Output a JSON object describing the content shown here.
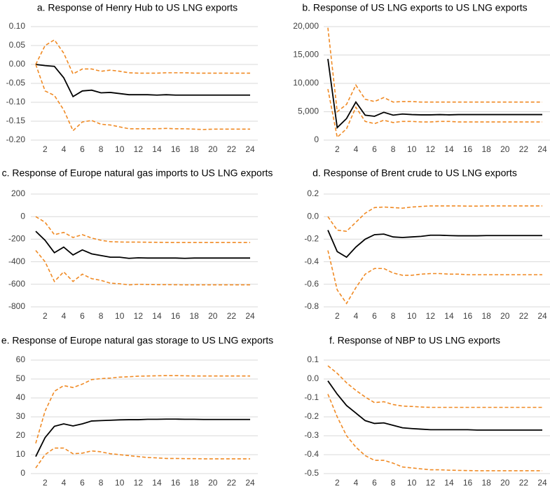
{
  "chart_data": [
    {
      "type": "line",
      "title": "a. Response of Henry Hub to US LNG exports",
      "x": [
        1,
        2,
        3,
        4,
        5,
        6,
        7,
        8,
        9,
        10,
        11,
        12,
        13,
        14,
        15,
        16,
        17,
        18,
        19,
        20,
        21,
        22,
        23,
        24
      ],
      "xlim": [
        1,
        24
      ],
      "xticks": [
        2,
        4,
        6,
        8,
        10,
        12,
        14,
        16,
        18,
        20,
        22,
        24
      ],
      "ylim": [
        -0.2,
        0.1
      ],
      "yticks": [
        {
          "value": 0.1,
          "label": "0.10"
        },
        0.05,
        {
          "value": 0,
          "label": "0.00"
        },
        -0.05,
        {
          "value": -0.1,
          "label": "-0.10"
        },
        -0.15,
        {
          "value": -0.2,
          "label": "-0.20"
        }
      ],
      "grid": true,
      "series": [
        {
          "color": "#f08a24",
          "style": "dashed",
          "values": [
            0,
            0.05,
            0.065,
            0.03,
            -0.025,
            -0.012,
            -0.012,
            -0.018,
            -0.015,
            -0.018,
            -0.022,
            -0.023,
            -0.023,
            -0.023,
            -0.022,
            -0.022,
            -0.022,
            -0.023,
            -0.023,
            -0.023,
            -0.023,
            -0.023,
            -0.023,
            -0.023
          ]
        },
        {
          "color": "#000000",
          "style": "solid",
          "values": [
            0,
            -0.003,
            -0.005,
            -0.035,
            -0.085,
            -0.07,
            -0.068,
            -0.075,
            -0.074,
            -0.077,
            -0.08,
            -0.08,
            -0.08,
            -0.081,
            -0.08,
            -0.081,
            -0.081,
            -0.081,
            -0.081,
            -0.081,
            -0.081,
            -0.081,
            -0.081,
            -0.081
          ]
        },
        {
          "color": "#f08a24",
          "style": "dashed",
          "values": [
            0,
            -0.07,
            -0.082,
            -0.12,
            -0.175,
            -0.152,
            -0.148,
            -0.158,
            -0.16,
            -0.165,
            -0.17,
            -0.17,
            -0.17,
            -0.17,
            -0.169,
            -0.17,
            -0.17,
            -0.171,
            -0.172,
            -0.171,
            -0.171,
            -0.171,
            -0.171,
            -0.171
          ]
        }
      ]
    },
    {
      "type": "line",
      "title": "b. Response of US LNG exports to US LNG exports",
      "x": [
        1,
        2,
        3,
        4,
        5,
        6,
        7,
        8,
        9,
        10,
        11,
        12,
        13,
        14,
        15,
        16,
        17,
        18,
        19,
        20,
        21,
        22,
        23,
        24
      ],
      "xlim": [
        1,
        24
      ],
      "xticks": [
        2,
        4,
        6,
        8,
        10,
        12,
        14,
        16,
        18,
        20,
        22,
        24
      ],
      "ylim": [
        0,
        20000
      ],
      "yticks": [
        {
          "value": 20000,
          "label": "20,000"
        },
        {
          "value": 15000,
          "label": "15,000"
        },
        {
          "value": 10000,
          "label": "10,000"
        },
        {
          "value": 5000,
          "label": "5,000"
        },
        0
      ],
      "grid": true,
      "series": [
        {
          "color": "#f08a24",
          "style": "dashed",
          "values": [
            19800,
            5000,
            6300,
            9700,
            7200,
            6800,
            7500,
            6700,
            6800,
            6800,
            6700,
            6700,
            6700,
            6700,
            6700,
            6700,
            6700,
            6700,
            6700,
            6700,
            6700,
            6700,
            6700,
            6700
          ]
        },
        {
          "color": "#000000",
          "style": "solid",
          "values": [
            14300,
            2200,
            3800,
            6700,
            4400,
            4200,
            4900,
            4400,
            4600,
            4500,
            4450,
            4450,
            4500,
            4450,
            4500,
            4500,
            4500,
            4500,
            4500,
            4500,
            4500,
            4500,
            4500,
            4500
          ]
        },
        {
          "color": "#f08a24",
          "style": "dashed",
          "values": [
            9000,
            500,
            2000,
            5800,
            3300,
            2900,
            3500,
            3100,
            3300,
            3300,
            3200,
            3200,
            3300,
            3300,
            3200,
            3200,
            3200,
            3200,
            3200,
            3200,
            3200,
            3200,
            3200,
            3200
          ]
        }
      ]
    },
    {
      "type": "line",
      "title": "c. Response of Europe natural gas imports to US LNG exports",
      "x": [
        1,
        2,
        3,
        4,
        5,
        6,
        7,
        8,
        9,
        10,
        11,
        12,
        13,
        14,
        15,
        16,
        17,
        18,
        19,
        20,
        21,
        22,
        23,
        24
      ],
      "xlim": [
        1,
        24
      ],
      "xticks": [
        2,
        4,
        6,
        8,
        10,
        12,
        14,
        16,
        18,
        20,
        22,
        24
      ],
      "ylim": [
        -800,
        200
      ],
      "yticks": [
        200,
        0,
        -200,
        -400,
        -600,
        -800
      ],
      "grid": true,
      "series": [
        {
          "color": "#f08a24",
          "style": "dashed",
          "values": [
            0,
            -50,
            -160,
            -140,
            -185,
            -160,
            -190,
            -210,
            -222,
            -225,
            -226,
            -226,
            -227,
            -228,
            -229,
            -230,
            -230,
            -230,
            -230,
            -230,
            -230,
            -230,
            -230,
            -230
          ]
        },
        {
          "color": "#000000",
          "style": "solid",
          "values": [
            -130,
            -210,
            -320,
            -270,
            -340,
            -295,
            -330,
            -345,
            -360,
            -360,
            -370,
            -365,
            -367,
            -367,
            -367,
            -367,
            -370,
            -367,
            -367,
            -367,
            -367,
            -367,
            -367,
            -367
          ]
        },
        {
          "color": "#f08a24",
          "style": "dashed",
          "values": [
            -300,
            -400,
            -575,
            -490,
            -575,
            -510,
            -550,
            -565,
            -590,
            -595,
            -605,
            -600,
            -602,
            -603,
            -603,
            -604,
            -605,
            -605,
            -605,
            -605,
            -605,
            -605,
            -605,
            -605
          ]
        }
      ]
    },
    {
      "type": "line",
      "title": "d. Response of Brent crude to US LNG exports",
      "x": [
        1,
        2,
        3,
        4,
        5,
        6,
        7,
        8,
        9,
        10,
        11,
        12,
        13,
        14,
        15,
        16,
        17,
        18,
        19,
        20,
        21,
        22,
        23,
        24
      ],
      "xlim": [
        1,
        24
      ],
      "xticks": [
        2,
        4,
        6,
        8,
        10,
        12,
        14,
        16,
        18,
        20,
        22,
        24
      ],
      "ylim": [
        -0.8,
        0.2
      ],
      "yticks": [
        0.2,
        {
          "value": 0,
          "label": "0.0"
        },
        -0.2,
        -0.4,
        -0.6,
        -0.8
      ],
      "grid": true,
      "series": [
        {
          "color": "#f08a24",
          "style": "dashed",
          "values": [
            0,
            -0.12,
            -0.13,
            -0.05,
            0.03,
            0.08,
            0.085,
            0.08,
            0.075,
            0.085,
            0.09,
            0.095,
            0.095,
            0.095,
            0.095,
            0.093,
            0.093,
            0.095,
            0.095,
            0.095,
            0.095,
            0.095,
            0.095,
            0.095
          ]
        },
        {
          "color": "#000000",
          "style": "solid",
          "values": [
            -0.12,
            -0.31,
            -0.36,
            -0.27,
            -0.2,
            -0.16,
            -0.155,
            -0.18,
            -0.185,
            -0.18,
            -0.175,
            -0.165,
            -0.165,
            -0.168,
            -0.17,
            -0.17,
            -0.17,
            -0.168,
            -0.168,
            -0.168,
            -0.168,
            -0.168,
            -0.168,
            -0.168
          ]
        },
        {
          "color": "#f08a24",
          "style": "dashed",
          "values": [
            -0.3,
            -0.65,
            -0.77,
            -0.63,
            -0.51,
            -0.46,
            -0.46,
            -0.5,
            -0.52,
            -0.52,
            -0.51,
            -0.505,
            -0.505,
            -0.51,
            -0.51,
            -0.515,
            -0.515,
            -0.515,
            -0.515,
            -0.515,
            -0.515,
            -0.515,
            -0.515,
            -0.515
          ]
        }
      ]
    },
    {
      "type": "line",
      "title": "e. Response of Europe natural gas storage to US LNG exports",
      "x": [
        1,
        2,
        3,
        4,
        5,
        6,
        7,
        8,
        9,
        10,
        11,
        12,
        13,
        14,
        15,
        16,
        17,
        18,
        19,
        20,
        21,
        22,
        23,
        24
      ],
      "xlim": [
        1,
        24
      ],
      "xticks": [
        2,
        4,
        6,
        8,
        10,
        12,
        14,
        16,
        18,
        20,
        22,
        24
      ],
      "ylim": [
        0,
        60
      ],
      "yticks": [
        60,
        50,
        40,
        30,
        20,
        10,
        0
      ],
      "grid": true,
      "series": [
        {
          "color": "#f08a24",
          "style": "dashed",
          "values": [
            16,
            33,
            43.5,
            46.5,
            45.5,
            47.3,
            49.7,
            50.2,
            50.5,
            51,
            51.2,
            51.5,
            51.6,
            51.7,
            51.8,
            51.8,
            51.7,
            51.6,
            51.6,
            51.6,
            51.6,
            51.6,
            51.6,
            51.6
          ]
        },
        {
          "color": "#000000",
          "style": "solid",
          "values": [
            9,
            19,
            25,
            26.3,
            25.2,
            26.3,
            27.8,
            28,
            28.2,
            28.4,
            28.5,
            28.5,
            28.7,
            28.7,
            28.8,
            28.8,
            28.7,
            28.7,
            28.6,
            28.6,
            28.6,
            28.6,
            28.6,
            28.6
          ]
        },
        {
          "color": "#f08a24",
          "style": "dashed",
          "values": [
            3,
            10,
            13.5,
            13.5,
            10.5,
            10.8,
            12,
            11.5,
            10.5,
            10,
            9.5,
            9,
            8.5,
            8.3,
            8,
            8,
            7.9,
            7.9,
            7.8,
            7.8,
            7.8,
            7.8,
            7.8,
            7.8
          ]
        }
      ]
    },
    {
      "type": "line",
      "title": "f. Response of NBP to US LNG exports",
      "x": [
        1,
        2,
        3,
        4,
        5,
        6,
        7,
        8,
        9,
        10,
        11,
        12,
        13,
        14,
        15,
        16,
        17,
        18,
        19,
        20,
        21,
        22,
        23,
        24
      ],
      "xlim": [
        1,
        24
      ],
      "xticks": [
        2,
        4,
        6,
        8,
        10,
        12,
        14,
        16,
        18,
        20,
        22,
        24
      ],
      "ylim": [
        -0.5,
        0.1
      ],
      "yticks": [
        0.1,
        {
          "value": 0,
          "label": "0.0"
        },
        -0.1,
        -0.2,
        -0.3,
        -0.4,
        -0.5
      ],
      "grid": true,
      "series": [
        {
          "color": "#f08a24",
          "style": "dashed",
          "values": [
            0.07,
            0.03,
            -0.02,
            -0.06,
            -0.095,
            -0.125,
            -0.12,
            -0.135,
            -0.143,
            -0.145,
            -0.148,
            -0.15,
            -0.15,
            -0.15,
            -0.15,
            -0.15,
            -0.15,
            -0.15,
            -0.15,
            -0.15,
            -0.15,
            -0.15,
            -0.15,
            -0.15
          ]
        },
        {
          "color": "#000000",
          "style": "solid",
          "values": [
            -0.01,
            -0.08,
            -0.14,
            -0.18,
            -0.22,
            -0.235,
            -0.232,
            -0.245,
            -0.258,
            -0.262,
            -0.265,
            -0.268,
            -0.268,
            -0.268,
            -0.268,
            -0.268,
            -0.27,
            -0.27,
            -0.27,
            -0.27,
            -0.27,
            -0.27,
            -0.27,
            -0.27
          ]
        },
        {
          "color": "#f08a24",
          "style": "dashed",
          "values": [
            -0.08,
            -0.2,
            -0.3,
            -0.36,
            -0.405,
            -0.43,
            -0.43,
            -0.445,
            -0.465,
            -0.47,
            -0.475,
            -0.48,
            -0.48,
            -0.482,
            -0.483,
            -0.484,
            -0.485,
            -0.485,
            -0.485,
            -0.485,
            -0.485,
            -0.485,
            -0.485,
            -0.485
          ]
        }
      ]
    }
  ]
}
